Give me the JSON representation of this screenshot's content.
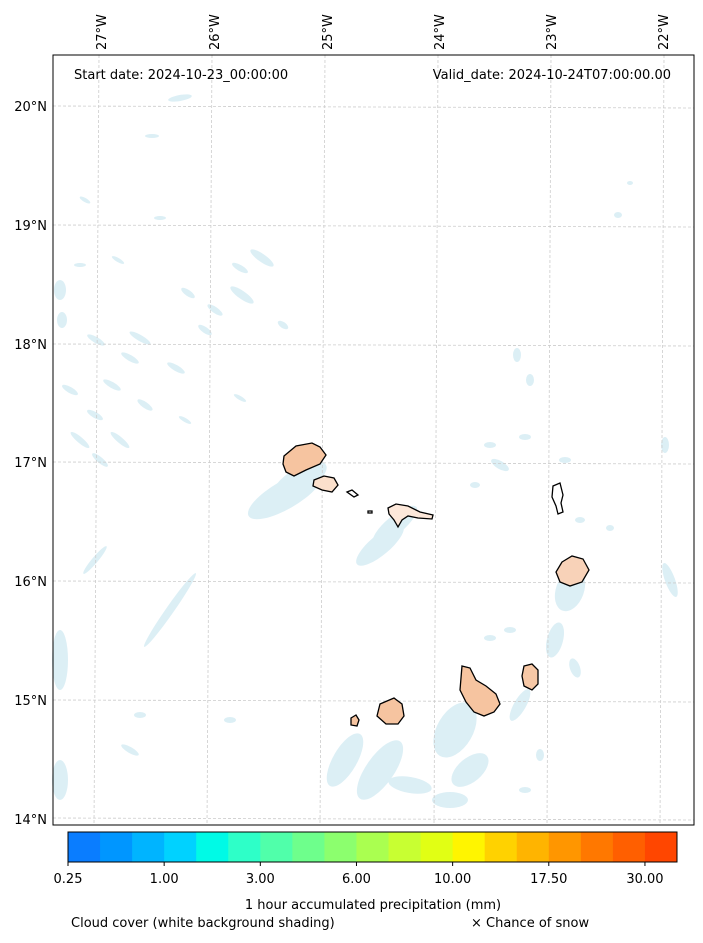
{
  "header": {
    "start_label": "Start date: 2024-10-23_00:00:00",
    "valid_label": "Valid_date: 2024-10-24T07:00:00.00"
  },
  "longitude_labels": [
    "27°W",
    "26°W",
    "25°W",
    "24°W",
    "23°W",
    "22°W"
  ],
  "latitude_labels": [
    "20°N",
    "19°N",
    "18°N",
    "17°N",
    "16°N",
    "15°N",
    "14°N"
  ],
  "colorbar": {
    "tick_labels": [
      "0.25",
      "1.00",
      "3.00",
      "6.00",
      "10.00",
      "17.50",
      "30.00"
    ],
    "colors": [
      "#0a7dff",
      "#0096ff",
      "#00b4ff",
      "#00d2ff",
      "#00fae6",
      "#2effc8",
      "#50ffaa",
      "#6eff8c",
      "#8cff6e",
      "#aaff50",
      "#c8ff32",
      "#e1ff14",
      "#fff500",
      "#ffd200",
      "#ffb400",
      "#ff9600",
      "#ff7800",
      "#ff5f00",
      "#ff4600"
    ],
    "title": "1 hour accumulated precipitation (mm)"
  },
  "legend": {
    "cloud_cover": "Cloud cover (white background shading)",
    "snow": "× Chance of snow"
  },
  "colors": {
    "cloud": "#d6ecf4",
    "land_fill": "#f6c4a0",
    "coastline": "#000000",
    "grid": "#cccccc"
  }
}
